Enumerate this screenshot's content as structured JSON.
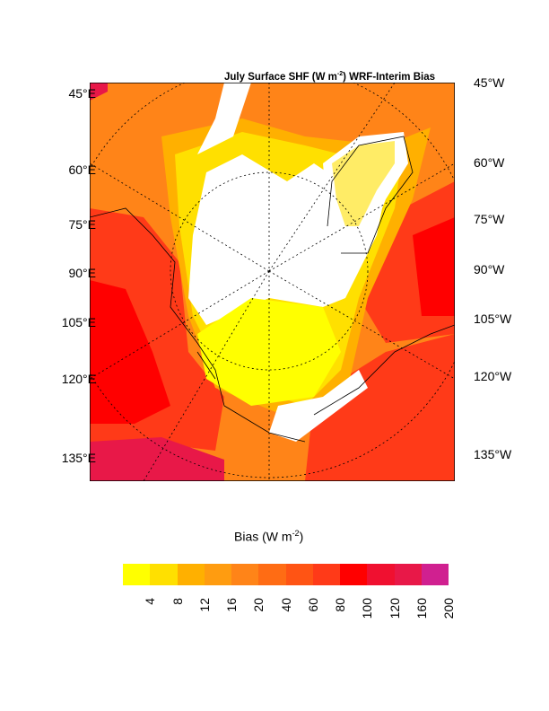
{
  "title": {
    "prefix": "July Surface SHF (W m",
    "exp": "-2",
    "suffix": ") WRF-Interim Bias"
  },
  "left_labels": [
    "45°E",
    "60°E",
    "75°E",
    "90°E",
    "105°E",
    "120°E",
    "135°E"
  ],
  "right_labels": [
    "45°W",
    "60°W",
    "75°W",
    "90°W",
    "105°W",
    "120°W",
    "135°W"
  ],
  "colorbar": {
    "title_prefix": "Bias (W m",
    "title_exp": "-2",
    "title_suffix": ")",
    "ticks": [
      "4",
      "8",
      "12",
      "16",
      "20",
      "40",
      "60",
      "80",
      "100",
      "120",
      "160",
      "200"
    ],
    "colors": [
      "#ffff00",
      "#ffe000",
      "#ffb000",
      "#ff9c10",
      "#ff8418",
      "#ff6c14",
      "#ff5414",
      "#ff3a18",
      "#ff0000",
      "#f01030",
      "#e81848",
      "#d02090"
    ]
  }
}
